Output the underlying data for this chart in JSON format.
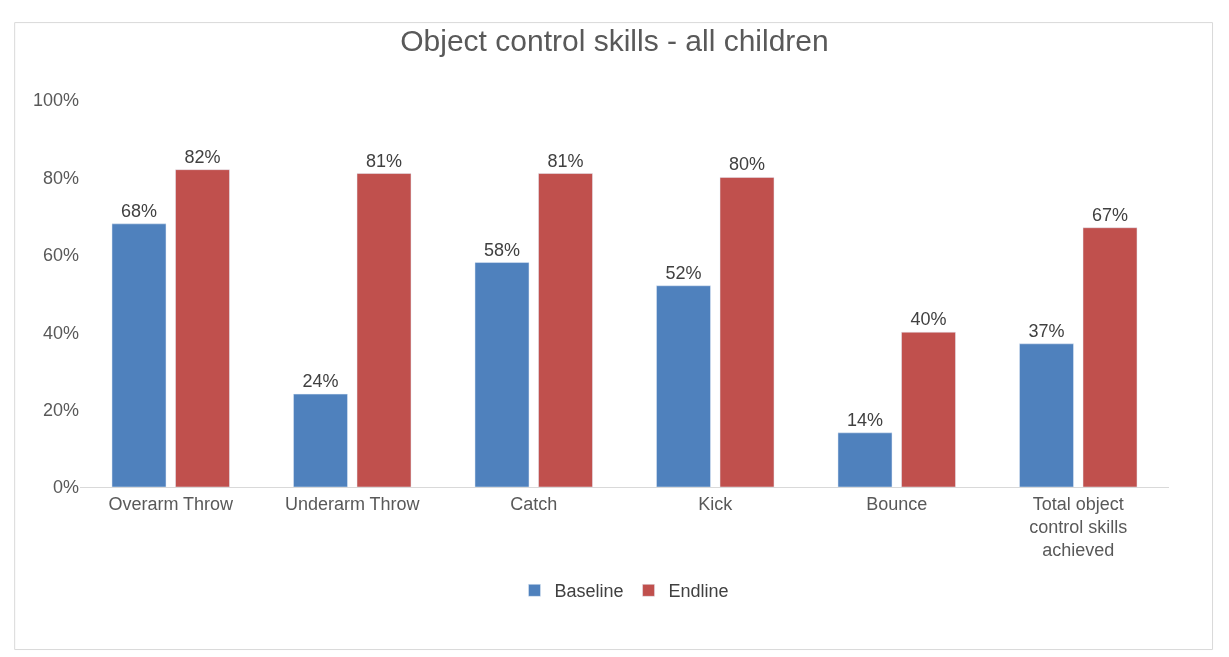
{
  "chart_data": {
    "type": "bar",
    "title": "Object control skills - all children",
    "categories": [
      "Overarm Throw",
      "Underarm Throw",
      "Catch",
      "Kick",
      "Bounce",
      "Total object control skills achieved"
    ],
    "series": [
      {
        "name": "Baseline",
        "color": "#4f81bd",
        "values": [
          68,
          24,
          58,
          52,
          14,
          37
        ],
        "value_labels": [
          "68%",
          "24%",
          "58%",
          "52%",
          "14%",
          "37%"
        ]
      },
      {
        "name": "Endline",
        "color": "#c0504d",
        "values": [
          82,
          81,
          81,
          80,
          40,
          67
        ],
        "value_labels": [
          "82%",
          "81%",
          "81%",
          "80%",
          "40%",
          "67%"
        ]
      }
    ],
    "ylim": [
      0,
      100
    ],
    "yticks": [
      {
        "value": 0,
        "label": "0%"
      },
      {
        "value": 20,
        "label": "20%"
      },
      {
        "value": 40,
        "label": "40%"
      },
      {
        "value": 60,
        "label": "60%"
      },
      {
        "value": 80,
        "label": "80%"
      },
      {
        "value": 100,
        "label": "100%"
      }
    ],
    "grid": false,
    "legend": "bottom"
  }
}
